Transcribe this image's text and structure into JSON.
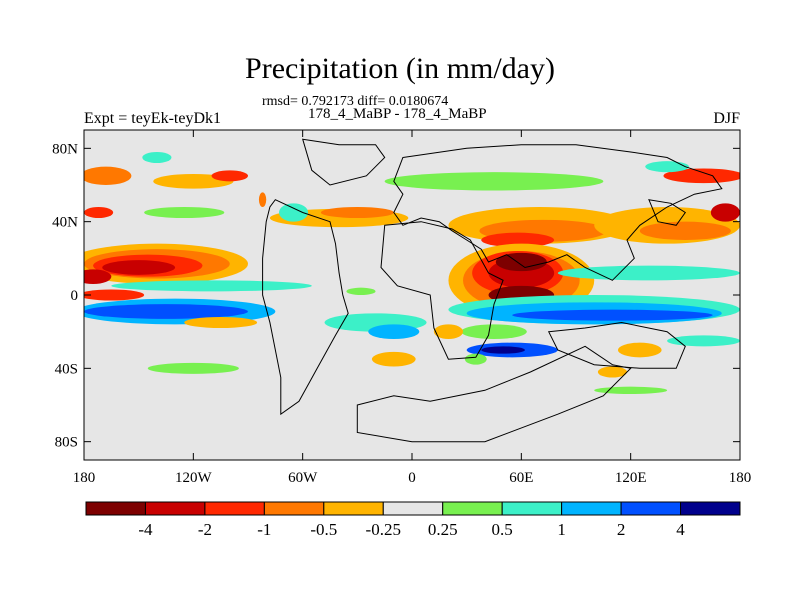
{
  "title": "Precipitation (in mm/day)",
  "stats": "rmsd= 0.792173 diff= 0.0180674",
  "subtitle": "178_4_MaBP - 178_4_MaBP",
  "expt_label": "Expt = teyEk-teyDk1",
  "season": "DJF",
  "chart_data": {
    "type": "heatmap",
    "variable": "precipitation difference",
    "units": "mm/day",
    "x_ticks": [
      "180",
      "120W",
      "60W",
      "0",
      "60E",
      "120E",
      "180"
    ],
    "x_tick_values": [
      -180,
      -120,
      -60,
      0,
      60,
      120,
      180
    ],
    "y_ticks": [
      "80N",
      "40N",
      "0",
      "40S",
      "80S"
    ],
    "y_tick_values": [
      80,
      40,
      0,
      -40,
      -80
    ],
    "xlim": [
      -180,
      180
    ],
    "ylim": [
      -90,
      90
    ],
    "legend_bins": [
      {
        "color": "#7d0000"
      },
      {
        "color": "#c80000"
      },
      {
        "color": "#ff2800"
      },
      {
        "color": "#ff7800"
      },
      {
        "color": "#ffb400"
      },
      {
        "color": "#e6e6e6"
      },
      {
        "color": "#78f050"
      },
      {
        "color": "#3cf0c8"
      },
      {
        "color": "#00b4ff"
      },
      {
        "color": "#0050ff"
      },
      {
        "color": "#00008c"
      }
    ],
    "legend_labels": [
      "-4",
      "-2",
      "-1",
      "-0.5",
      "-0.25",
      "0.25",
      "0.5",
      "1",
      "2",
      "4"
    ],
    "blobs": [
      {
        "lon": -168,
        "lat": 65,
        "rx": 14,
        "ry": 5,
        "level": 3
      },
      {
        "lon": -120,
        "lat": 62,
        "rx": 22,
        "ry": 4,
        "level": 4
      },
      {
        "lon": -100,
        "lat": 65,
        "rx": 10,
        "ry": 3,
        "level": 2
      },
      {
        "lon": -140,
        "lat": 75,
        "rx": 8,
        "ry": 3,
        "level": 7
      },
      {
        "lon": -172,
        "lat": 45,
        "rx": 8,
        "ry": 3,
        "level": 2
      },
      {
        "lon": -125,
        "lat": 45,
        "rx": 22,
        "ry": 3,
        "level": 6
      },
      {
        "lon": -140,
        "lat": 17,
        "rx": 50,
        "ry": 11,
        "level": 4
      },
      {
        "lon": -140,
        "lat": 17,
        "rx": 40,
        "ry": 8,
        "level": 3
      },
      {
        "lon": -145,
        "lat": 16,
        "rx": 30,
        "ry": 6,
        "level": 2
      },
      {
        "lon": -150,
        "lat": 15,
        "rx": 20,
        "ry": 4,
        "level": 1
      },
      {
        "lon": -175,
        "lat": 10,
        "rx": 10,
        "ry": 4,
        "level": 1
      },
      {
        "lon": -110,
        "lat": 5,
        "rx": 55,
        "ry": 3,
        "level": 7
      },
      {
        "lon": -130,
        "lat": -9,
        "rx": 55,
        "ry": 7,
        "level": 8
      },
      {
        "lon": -135,
        "lat": -9,
        "rx": 45,
        "ry": 4,
        "level": 9
      },
      {
        "lon": -165,
        "lat": 0,
        "rx": 18,
        "ry": 3,
        "level": 2
      },
      {
        "lon": -120,
        "lat": -40,
        "rx": 25,
        "ry": 3,
        "level": 6
      },
      {
        "lon": -105,
        "lat": -15,
        "rx": 20,
        "ry": 3,
        "level": 4
      },
      {
        "lon": -40,
        "lat": 42,
        "rx": 38,
        "ry": 5,
        "level": 4
      },
      {
        "lon": -30,
        "lat": 45,
        "rx": 20,
        "ry": 3,
        "level": 3
      },
      {
        "lon": -65,
        "lat": 45,
        "rx": 8,
        "ry": 5,
        "level": 7
      },
      {
        "lon": -82,
        "lat": 52,
        "rx": 2,
        "ry": 4,
        "level": 3
      },
      {
        "lon": -20,
        "lat": -15,
        "rx": 28,
        "ry": 5,
        "level": 7
      },
      {
        "lon": -10,
        "lat": -20,
        "rx": 14,
        "ry": 4,
        "level": 8
      },
      {
        "lon": -28,
        "lat": 2,
        "rx": 8,
        "ry": 2,
        "level": 6
      },
      {
        "lon": -10,
        "lat": -35,
        "rx": 12,
        "ry": 4,
        "level": 4
      },
      {
        "lon": 45,
        "lat": 62,
        "rx": 60,
        "ry": 5,
        "level": 6
      },
      {
        "lon": 70,
        "lat": 38,
        "rx": 50,
        "ry": 10,
        "level": 4
      },
      {
        "lon": 72,
        "lat": 35,
        "rx": 35,
        "ry": 6,
        "level": 3
      },
      {
        "lon": 58,
        "lat": 30,
        "rx": 20,
        "ry": 4,
        "level": 2
      },
      {
        "lon": 60,
        "lat": 8,
        "rx": 40,
        "ry": 20,
        "level": 4
      },
      {
        "lon": 60,
        "lat": 8,
        "rx": 32,
        "ry": 16,
        "level": 3
      },
      {
        "lon": 58,
        "lat": 12,
        "rx": 25,
        "ry": 12,
        "level": 2
      },
      {
        "lon": 60,
        "lat": 12,
        "rx": 18,
        "ry": 8,
        "level": 1
      },
      {
        "lon": 60,
        "lat": 0,
        "rx": 18,
        "ry": 5,
        "level": 0
      },
      {
        "lon": 60,
        "lat": 18,
        "rx": 14,
        "ry": 5,
        "level": 0
      },
      {
        "lon": 140,
        "lat": 38,
        "rx": 40,
        "ry": 10,
        "level": 4
      },
      {
        "lon": 150,
        "lat": 35,
        "rx": 25,
        "ry": 5,
        "level": 3
      },
      {
        "lon": 172,
        "lat": 45,
        "rx": 8,
        "ry": 5,
        "level": 1
      },
      {
        "lon": 160,
        "lat": 65,
        "rx": 22,
        "ry": 4,
        "level": 2
      },
      {
        "lon": 140,
        "lat": 70,
        "rx": 12,
        "ry": 3,
        "level": 7
      },
      {
        "lon": 130,
        "lat": 12,
        "rx": 50,
        "ry": 4,
        "level": 7
      },
      {
        "lon": 100,
        "lat": -8,
        "rx": 80,
        "ry": 8,
        "level": 7
      },
      {
        "lon": 100,
        "lat": -10,
        "rx": 70,
        "ry": 6,
        "level": 8
      },
      {
        "lon": 110,
        "lat": -11,
        "rx": 55,
        "ry": 3,
        "level": 9
      },
      {
        "lon": 55,
        "lat": -30,
        "rx": 25,
        "ry": 4,
        "level": 9
      },
      {
        "lon": 50,
        "lat": -30,
        "rx": 12,
        "ry": 2,
        "level": 10
      },
      {
        "lon": 45,
        "lat": -20,
        "rx": 18,
        "ry": 4,
        "level": 6
      },
      {
        "lon": 125,
        "lat": -30,
        "rx": 12,
        "ry": 4,
        "level": 4
      },
      {
        "lon": 110,
        "lat": -42,
        "rx": 8,
        "ry": 3,
        "level": 4
      },
      {
        "lon": 160,
        "lat": -25,
        "rx": 20,
        "ry": 3,
        "level": 7
      },
      {
        "lon": 120,
        "lat": -52,
        "rx": 20,
        "ry": 2,
        "level": 6
      },
      {
        "lon": 20,
        "lat": -20,
        "rx": 8,
        "ry": 4,
        "level": 4
      },
      {
        "lon": 35,
        "lat": -35,
        "rx": 6,
        "ry": 3,
        "level": 6
      }
    ],
    "land_outlines": [
      [
        [
          -60,
          85
        ],
        [
          -40,
          82
        ],
        [
          -20,
          82
        ],
        [
          -15,
          75
        ],
        [
          -25,
          65
        ],
        [
          -45,
          60
        ],
        [
          -55,
          68
        ],
        [
          -60,
          85
        ]
      ],
      [
        [
          -75,
          52
        ],
        [
          -60,
          45
        ],
        [
          -45,
          40
        ],
        [
          -42,
          28
        ],
        [
          -40,
          12
        ],
        [
          -38,
          0
        ],
        [
          -35,
          -10
        ],
        [
          -42,
          -22
        ],
        [
          -52,
          -40
        ],
        [
          -62,
          -58
        ],
        [
          -72,
          -65
        ],
        [
          -72,
          -45
        ],
        [
          -78,
          -15
        ],
        [
          -82,
          0
        ],
        [
          -82,
          20
        ],
        [
          -80,
          40
        ],
        [
          -78,
          48
        ],
        [
          -75,
          52
        ]
      ],
      [
        [
          -30,
          -60
        ],
        [
          -10,
          -55
        ],
        [
          10,
          -58
        ],
        [
          40,
          -52
        ],
        [
          65,
          -42
        ],
        [
          95,
          -28
        ],
        [
          110,
          -38
        ],
        [
          120,
          -40
        ],
        [
          105,
          -55
        ],
        [
          80,
          -65
        ],
        [
          40,
          -80
        ],
        [
          0,
          -80
        ],
        [
          -30,
          -75
        ],
        [
          -30,
          -60
        ]
      ],
      [
        [
          -5,
          75
        ],
        [
          30,
          80
        ],
        [
          60,
          82
        ],
        [
          90,
          82
        ],
        [
          120,
          78
        ],
        [
          140,
          75
        ],
        [
          150,
          70
        ],
        [
          165,
          65
        ],
        [
          170,
          58
        ],
        [
          155,
          55
        ],
        [
          140,
          48
        ],
        [
          125,
          38
        ],
        [
          118,
          30
        ],
        [
          122,
          20
        ],
        [
          110,
          8
        ],
        [
          95,
          15
        ],
        [
          85,
          22
        ],
        [
          75,
          18
        ],
        [
          62,
          15
        ],
        [
          52,
          22
        ],
        [
          42,
          18
        ],
        [
          38,
          25
        ],
        [
          30,
          30
        ],
        [
          22,
          35
        ],
        [
          15,
          40
        ],
        [
          5,
          42
        ],
        [
          -5,
          38
        ],
        [
          -10,
          45
        ],
        [
          -5,
          55
        ],
        [
          -10,
          62
        ],
        [
          -5,
          75
        ]
      ],
      [
        [
          -15,
          38
        ],
        [
          5,
          40
        ],
        [
          22,
          36
        ],
        [
          32,
          30
        ],
        [
          42,
          12
        ],
        [
          50,
          8
        ],
        [
          45,
          -5
        ],
        [
          42,
          -22
        ],
        [
          35,
          -34
        ],
        [
          20,
          -35
        ],
        [
          12,
          -18
        ],
        [
          10,
          0
        ],
        [
          -8,
          5
        ],
        [
          -17,
          15
        ],
        [
          -15,
          38
        ]
      ],
      [
        [
          75,
          -20
        ],
        [
          95,
          -18
        ],
        [
          115,
          -15
        ],
        [
          140,
          -20
        ],
        [
          150,
          -28
        ],
        [
          145,
          -40
        ],
        [
          125,
          -40
        ],
        [
          100,
          -38
        ],
        [
          80,
          -30
        ],
        [
          75,
          -20
        ]
      ],
      [
        [
          130,
          52
        ],
        [
          142,
          50
        ],
        [
          150,
          45
        ],
        [
          145,
          38
        ],
        [
          135,
          40
        ],
        [
          130,
          52
        ]
      ]
    ]
  }
}
